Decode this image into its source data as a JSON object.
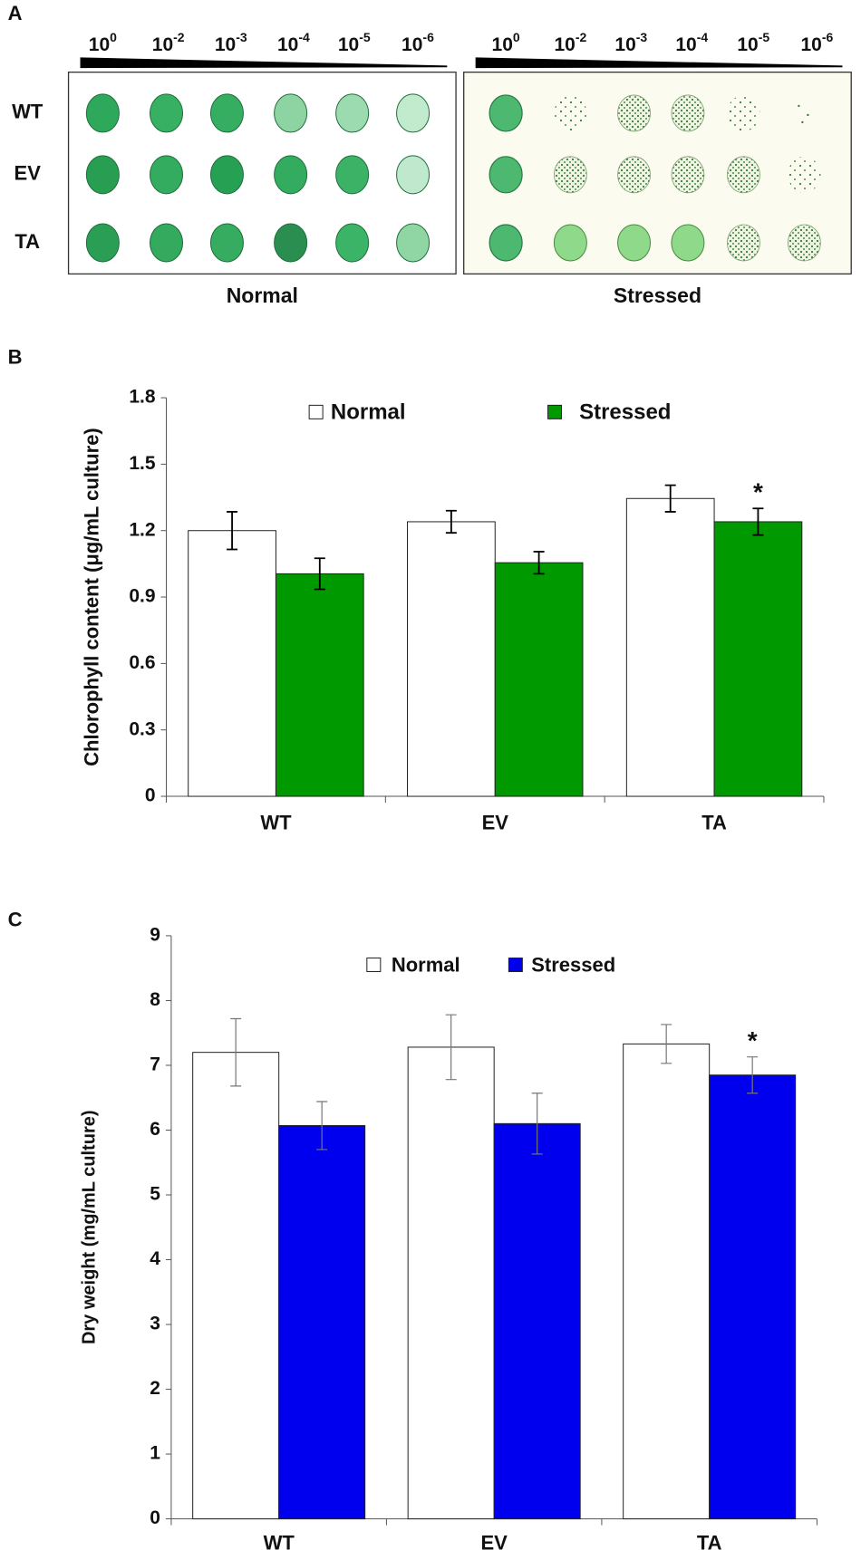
{
  "panel_a": {
    "label": "A",
    "dilutions": [
      {
        "base": "10",
        "exp": "0"
      },
      {
        "base": "10",
        "exp": "-2"
      },
      {
        "base": "10",
        "exp": "-3"
      },
      {
        "base": "10",
        "exp": "-4"
      },
      {
        "base": "10",
        "exp": "-5"
      },
      {
        "base": "10",
        "exp": "-6"
      }
    ],
    "rows": [
      "WT",
      "EV",
      "TA"
    ],
    "conditions": [
      "Normal",
      "Stressed"
    ]
  },
  "chart_data": [
    {
      "type": "bar",
      "panel_label": "B",
      "ylabel": "Chlorophyll content (μg/mL culture)",
      "categories": [
        "WT",
        "EV",
        "TA"
      ],
      "series": [
        {
          "name": "Normal",
          "color": "#ffffff",
          "values": [
            1.2,
            1.24,
            1.345
          ],
          "errors": [
            0.085,
            0.05,
            0.06
          ]
        },
        {
          "name": "Stressed",
          "color": "#009900",
          "values": [
            1.005,
            1.055,
            1.24
          ],
          "errors": [
            0.07,
            0.05,
            0.06
          ]
        }
      ],
      "ylim": [
        0,
        1.8
      ],
      "yticks": [
        0,
        0.3,
        0.6,
        0.9,
        1.2,
        1.5,
        1.8
      ],
      "error_bar_color": "#000000",
      "annotation": "*",
      "legend": "top",
      "grid": false
    },
    {
      "type": "bar",
      "panel_label": "C",
      "ylabel": "Dry weight (mg/mL culture)",
      "categories": [
        "WT",
        "EV",
        "TA"
      ],
      "series": [
        {
          "name": "Normal",
          "color": "#ffffff",
          "values": [
            7.2,
            7.28,
            7.33
          ],
          "errors": [
            0.52,
            0.5,
            0.3
          ]
        },
        {
          "name": "Stressed",
          "color": "#0000ee",
          "values": [
            6.07,
            6.1,
            6.85
          ],
          "errors": [
            0.37,
            0.47,
            0.28
          ]
        }
      ],
      "ylim": [
        0,
        9
      ],
      "yticks": [
        0,
        1,
        2,
        3,
        4,
        5,
        6,
        7,
        8,
        9
      ],
      "error_bar_color": "#777777",
      "annotation": "*",
      "legend": "top",
      "grid": false
    }
  ]
}
